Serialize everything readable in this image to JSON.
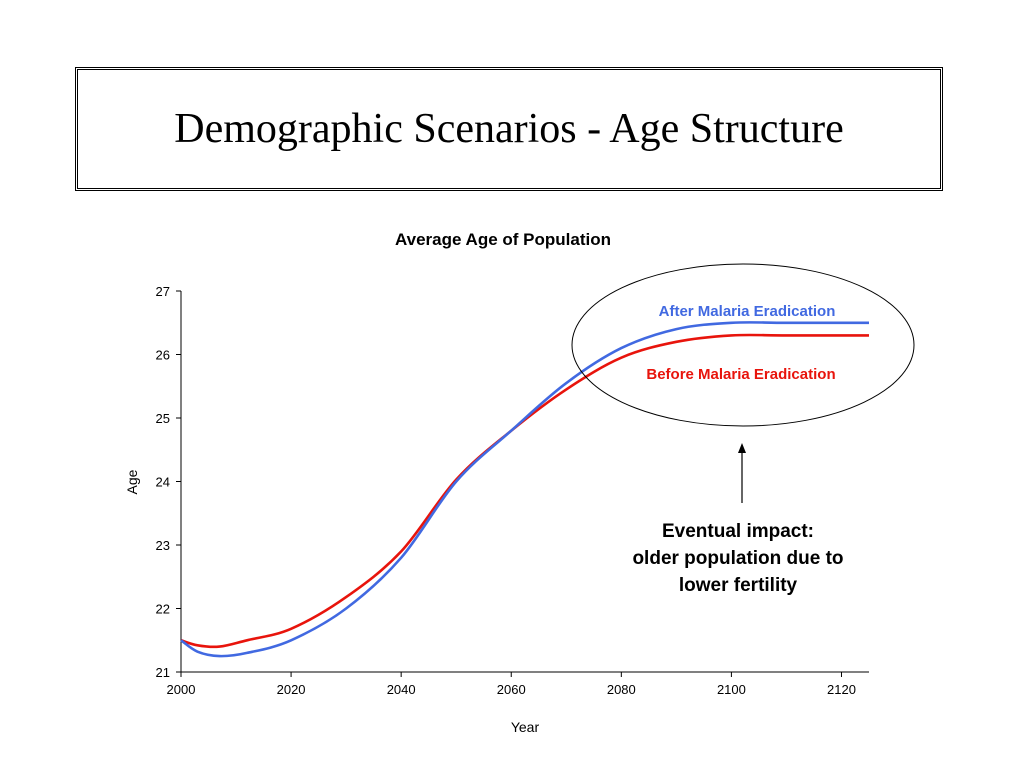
{
  "slide": {
    "title": "Demographic Scenarios - Age Structure"
  },
  "annotation": {
    "lines": [
      "Eventual impact:",
      "older population due to",
      "lower fertility"
    ]
  },
  "colors": {
    "after": "#4169e1",
    "before": "#e8140c",
    "axis": "#000000"
  },
  "chart_data": {
    "type": "line",
    "title": "Average Age of Population",
    "xlabel": "Year",
    "ylabel": "Age",
    "xlim": [
      2000,
      2125
    ],
    "ylim": [
      21,
      27
    ],
    "xticks": [
      2000,
      2020,
      2040,
      2060,
      2080,
      2100,
      2120
    ],
    "yticks": [
      21,
      22,
      23,
      24,
      25,
      26,
      27
    ],
    "grid": false,
    "series": [
      {
        "name": "After Malaria Eradication",
        "x": [
          2000,
          2003,
          2007,
          2012,
          2020,
          2030,
          2040,
          2050,
          2060,
          2070,
          2080,
          2090,
          2100,
          2110,
          2125
        ],
        "values": [
          21.5,
          21.32,
          21.25,
          21.3,
          21.5,
          22.0,
          22.8,
          24.0,
          24.8,
          25.55,
          26.1,
          26.4,
          26.5,
          26.5,
          26.5
        ]
      },
      {
        "name": "Before Malaria Eradication",
        "x": [
          2000,
          2003,
          2007,
          2012,
          2020,
          2030,
          2040,
          2050,
          2060,
          2070,
          2080,
          2090,
          2100,
          2110,
          2125
        ],
        "values": [
          21.5,
          21.42,
          21.4,
          21.5,
          21.68,
          22.18,
          22.9,
          24.03,
          24.8,
          25.45,
          25.95,
          26.2,
          26.3,
          26.3,
          26.3
        ]
      }
    ]
  }
}
